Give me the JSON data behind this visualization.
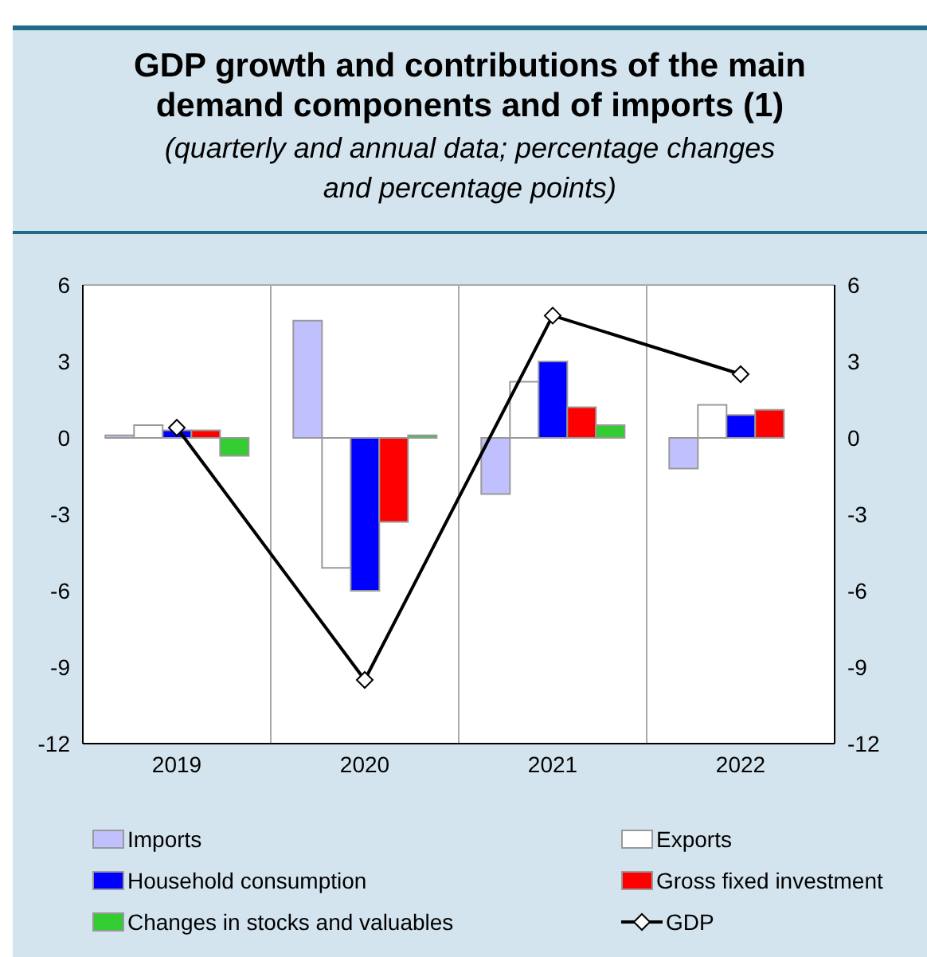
{
  "chart_data": {
    "type": "bar",
    "title": "GDP growth and contributions of the main demand components and of imports (1)",
    "subtitle": "(quarterly and annual data; percentage changes and percentage points)",
    "categories": [
      "2019",
      "2020",
      "2021",
      "2022"
    ],
    "series": [
      {
        "name": "Imports",
        "color": "#c0c0ff",
        "values": [
          0.1,
          4.6,
          -2.2,
          -1.2
        ]
      },
      {
        "name": "Exports",
        "color": "#ffffff",
        "values": [
          0.5,
          -5.1,
          2.2,
          1.3
        ]
      },
      {
        "name": "Household consumption",
        "color": "#0000ff",
        "values": [
          0.3,
          -6.0,
          3.0,
          0.9
        ]
      },
      {
        "name": "Gross fixed investment",
        "color": "#ff0000",
        "values": [
          0.3,
          -3.3,
          1.2,
          1.1
        ]
      },
      {
        "name": "Changes in stocks and valuables",
        "color": "#33cc33",
        "values": [
          -0.7,
          0.1,
          0.5,
          0.0
        ]
      },
      {
        "name": "GDP",
        "type": "line",
        "color": "#000000",
        "values": [
          0.4,
          -9.5,
          4.8,
          2.5
        ],
        "marker": "diamond",
        "line_style": "solid"
      }
    ],
    "ylim": [
      -12,
      6
    ],
    "yticks": [
      -12,
      -9,
      -6,
      -3,
      0,
      3,
      6
    ],
    "y2lim": [
      -12,
      6
    ],
    "y2ticks": [
      -12,
      -9,
      -6,
      -3,
      0,
      3,
      6
    ],
    "grid": true,
    "legend": "bottom"
  }
}
